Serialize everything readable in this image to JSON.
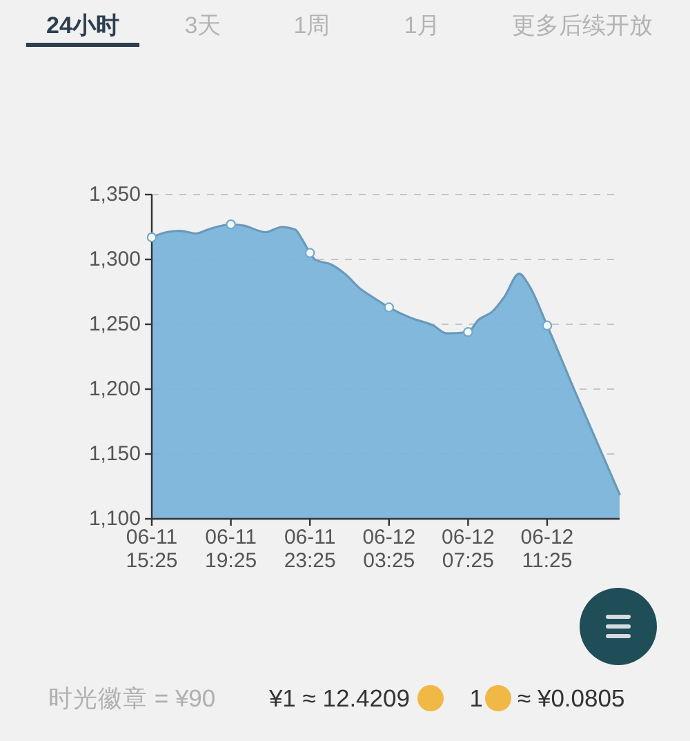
{
  "chart_data": {
    "type": "area",
    "annotations": [
      "24小时",
      "3天",
      "1周",
      "1月",
      "更多后续开放",
      "时光徽章 = ¥90",
      "¥1 ≈ 12.4209",
      "1",
      "≈ ¥0.0805"
    ],
    "xlim": [
      "--06-11T15:25",
      "--06-12T15:05"
    ],
    "xticks": [
      {
        "value": "--06-11T15:25",
        "label": "06-11\n15:25"
      },
      {
        "value": "--06-11T19:25",
        "label": "06-11\n19:25"
      },
      {
        "value": "--06-11T23:25",
        "label": "06-11\n23:25"
      },
      {
        "value": "--06-12T03:25",
        "label": "06-12\n03:25"
      },
      {
        "value": "--06-12T07:25",
        "label": "06-12\n07:25"
      },
      {
        "value": "--06-12T11:25",
        "label": "06-12\n11:25"
      }
    ],
    "ylim": [
      1100,
      1350
    ],
    "yticks": [
      {
        "value": 1100,
        "label": "1,100"
      },
      {
        "value": 1150,
        "label": "1,150"
      },
      {
        "value": 1200,
        "label": "1,200"
      },
      {
        "value": 1250,
        "label": "1,250"
      },
      {
        "value": 1300,
        "label": "1,300"
      },
      {
        "value": 1350,
        "label": "1,350"
      }
    ],
    "grid": "y",
    "series": [
      {
        "color": "#7bb4dc",
        "x": [
          "--06-11T15:25",
          "--06-11T16:10",
          "--06-11T16:50",
          "--06-11T17:40",
          "--06-11T18:15",
          "--06-11T19:25",
          "--06-11T20:05",
          "--06-11T21:10",
          "--06-11T22:00",
          "--06-11T22:40",
          "--06-11T23:00",
          "--06-11T23:25",
          "--06-11T23:40",
          "--06-12T00:30",
          "--06-12T01:15",
          "--06-12T01:55",
          "--06-12T02:35",
          "--06-12T03:25",
          "--06-12T04:30",
          "--06-12T05:40",
          "--06-12T06:20",
          "--06-12T07:25",
          "--06-12T07:55",
          "--06-12T08:40",
          "--06-12T09:15",
          "--06-12T10:00",
          "--06-12T10:30",
          "--06-12T11:25",
          "--06-12T12:50",
          "--06-12T15:05"
        ],
        "values": [
          1317,
          1321,
          1322,
          1320,
          1323,
          1327,
          1326,
          1321,
          1325,
          1323,
          1316,
          1305,
          1300,
          1296,
          1288,
          1278,
          1271,
          1263,
          1255,
          1249,
          1243,
          1244,
          1253,
          1260,
          1271,
          1289,
          1280,
          1249,
          1198,
          1119
        ]
      },
      {
        "type": "scatter",
        "marker": "circle",
        "color": "#f4fafd",
        "x": [
          "--06-11T15:25",
          "--06-11T19:25",
          "--06-11T23:25",
          "--06-12T03:25",
          "--06-12T07:25",
          "--06-12T11:25"
        ],
        "values": [
          1317,
          1327,
          1305,
          1263,
          1244,
          1249
        ]
      }
    ]
  }
}
